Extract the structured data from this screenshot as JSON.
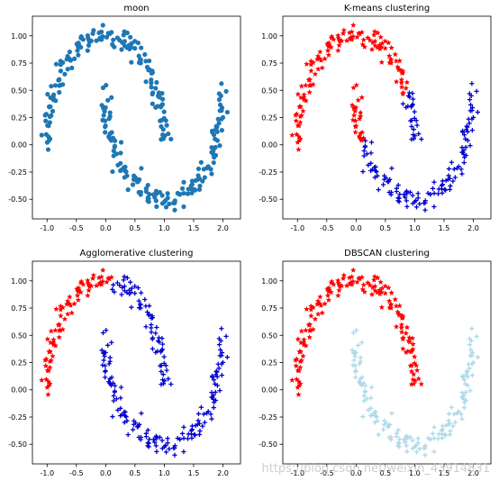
{
  "watermark": "https://blog.csdn.net/weixin_43914831",
  "chart_data": [
    {
      "type": "scatter",
      "title": "moon",
      "xlim": [
        -1.25,
        2.3
      ],
      "ylim": [
        -0.68,
        1.18
      ],
      "xticks": [
        "-1.0",
        "-0.5",
        "0.0",
        "0.5",
        "1.0",
        "1.5",
        "2.0"
      ],
      "yticks": [
        "-0.50",
        "-0.25",
        "0.00",
        "0.25",
        "0.50",
        "0.75",
        "1.00"
      ],
      "coloring": "single",
      "colors": [
        "#1f77b4"
      ],
      "marker": "circle"
    },
    {
      "type": "scatter",
      "title": "K-means clustering",
      "xlim": [
        -1.25,
        2.3
      ],
      "ylim": [
        -0.68,
        1.18
      ],
      "xticks": [
        "-1.0",
        "-0.5",
        "0.0",
        "0.5",
        "1.0",
        "1.5",
        "2.0"
      ],
      "yticks": [
        "-0.50",
        "-0.25",
        "0.00",
        "0.25",
        "0.50",
        "0.75",
        "1.00"
      ],
      "coloring": "kmeans",
      "colors": [
        "#ff0000",
        "#0000cd"
      ],
      "markers": [
        "star",
        "plus"
      ]
    },
    {
      "type": "scatter",
      "title": "Agglomerative clustering",
      "xlim": [
        -1.25,
        2.3
      ],
      "ylim": [
        -0.68,
        1.18
      ],
      "xticks": [
        "-1.0",
        "-0.5",
        "0.0",
        "0.5",
        "1.0",
        "1.5",
        "2.0"
      ],
      "yticks": [
        "-0.50",
        "-0.25",
        "0.00",
        "0.25",
        "0.50",
        "0.75",
        "1.00"
      ],
      "coloring": "agglomerative",
      "colors": [
        "#ff0000",
        "#0000cd"
      ],
      "markers": [
        "star",
        "plus"
      ]
    },
    {
      "type": "scatter",
      "title": "DBSCAN clustering",
      "xlim": [
        -1.25,
        2.3
      ],
      "ylim": [
        -0.68,
        1.18
      ],
      "xticks": [
        "-1.0",
        "-0.5",
        "0.0",
        "0.5",
        "1.0",
        "1.5",
        "2.0"
      ],
      "yticks": [
        "-0.50",
        "-0.25",
        "0.00",
        "0.25",
        "0.50",
        "0.75",
        "1.00"
      ],
      "coloring": "moon",
      "colors": [
        "#ff0000",
        "#add8e6"
      ],
      "markers": [
        "star",
        "plus"
      ]
    }
  ]
}
